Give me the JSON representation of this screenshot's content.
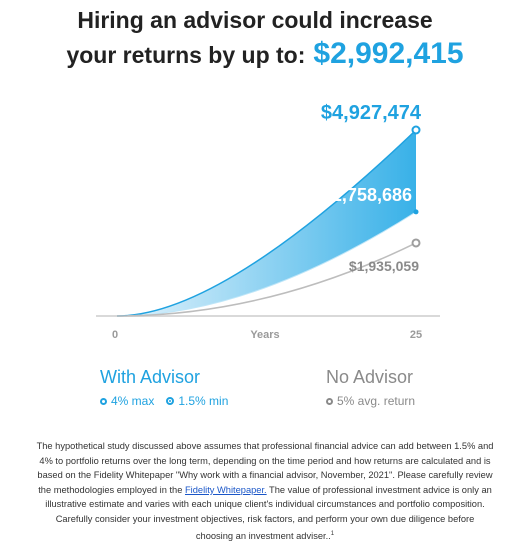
{
  "headline": {
    "line1": "Hiring an advisor could increase",
    "line2": "your returns by up to:",
    "amount": "$2,992,415"
  },
  "colors": {
    "advisor": "#1fa2e0",
    "advisor_fill_dark": "#4db8ea",
    "advisor_fill_light": "#dff1fb",
    "no_advisor": "#bdbdbd",
    "label_gray": "#8a8a8a"
  },
  "chart_data": {
    "type": "area",
    "xlabel": "Years",
    "x_ticks": [
      "0",
      "25"
    ],
    "x_range": [
      0,
      25
    ],
    "y_range": [
      0,
      4927474
    ],
    "start_value": 0,
    "series": [
      {
        "name": "With Advisor 4% max",
        "end_value": 4927474,
        "label": "$4,927,474"
      },
      {
        "name": "With Advisor 1.5% min",
        "end_value": 2758686,
        "label": "$2,758,686"
      },
      {
        "name": "No Advisor 5% avg. return",
        "end_value": 1935059,
        "label": "$1,935,059"
      }
    ]
  },
  "legend": {
    "advisor": {
      "name": "With Advisor",
      "max": "4% max",
      "min": "1.5% min"
    },
    "no_advisor": {
      "name": "No Advisor",
      "avg": "5% avg. return"
    }
  },
  "disclaimer": {
    "text_before_link": "The hypothetical study discussed above assumes that professional financial advice can add between 1.5% and 4% to portfolio returns over the long term, depending on the time period and how returns are calculated and is based on the Fidelity Whitepaper \"Why work with a financial advisor, November, 2021\". Please carefully review the methodologies employed in the ",
    "link_text": "Fidelity Whitepaper.",
    "text_after_link": " The value of professional investment advice is only an illustrative estimate and varies with each unique client's individual circumstances and portfolio composition. Carefully consider your investment objectives, risk factors, and perform your own due diligence before choosing an investment adviser..",
    "footnote": "1"
  }
}
